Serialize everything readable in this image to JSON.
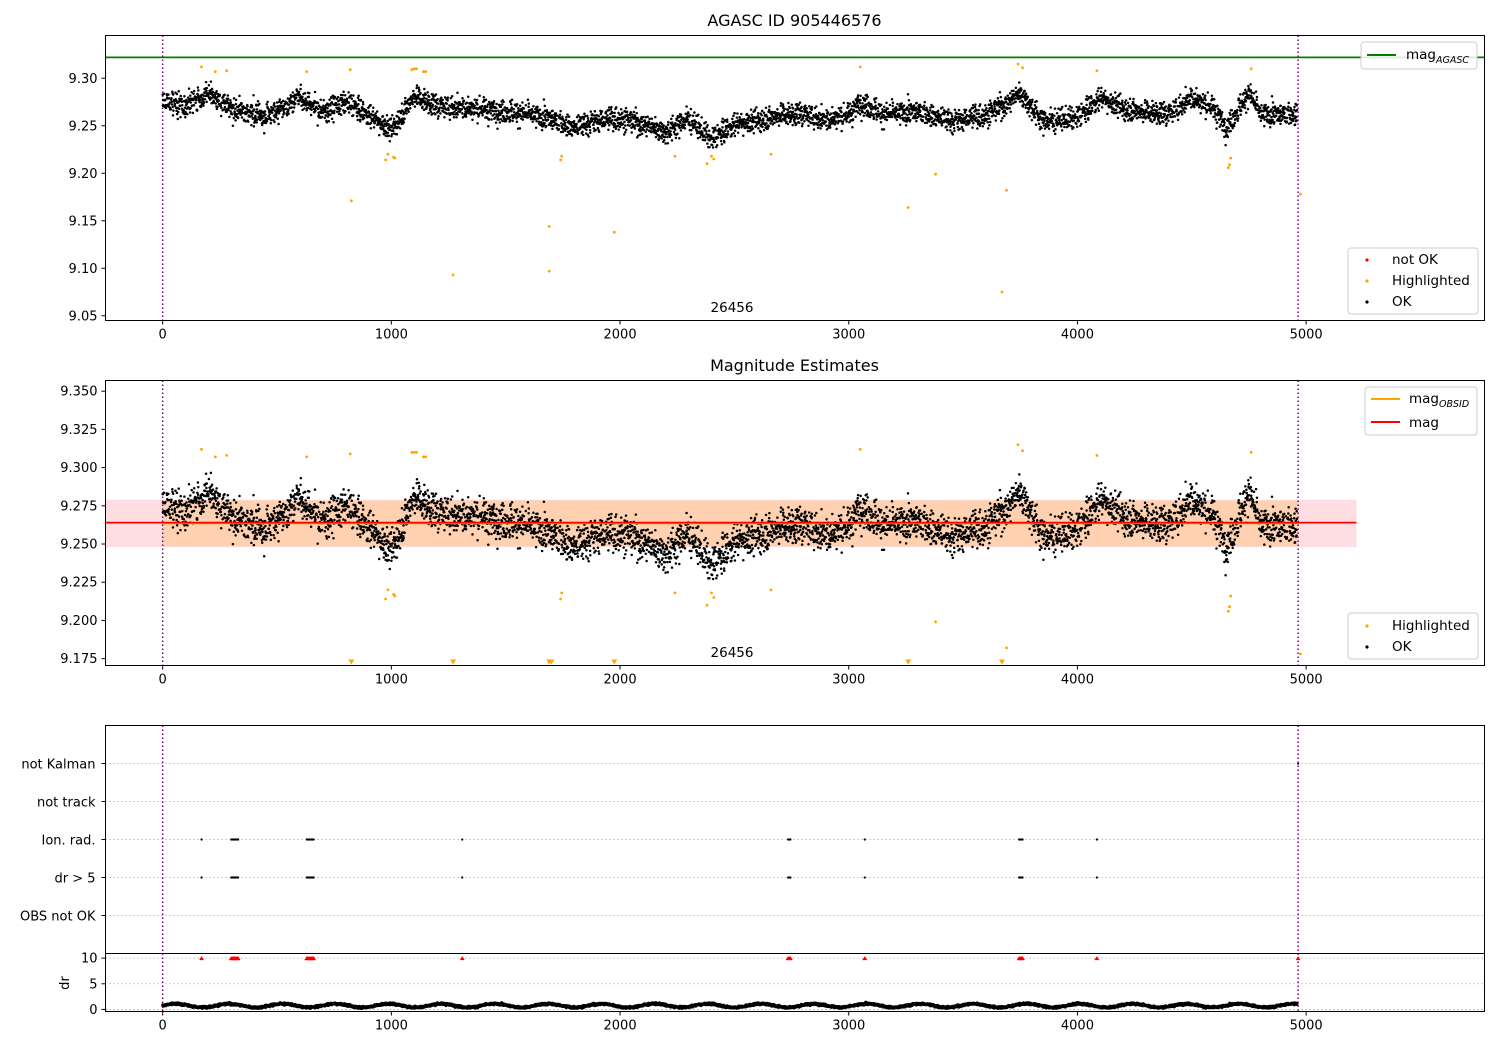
{
  "chart_data": [
    {
      "type": "scatter",
      "title": "AGASC ID 905446576",
      "annotation": "26456",
      "xlim": [
        -250,
        5780
      ],
      "ylim": [
        9.045,
        9.345
      ],
      "xticks": [
        0,
        1000,
        2000,
        3000,
        4000,
        5000
      ],
      "yticks": [
        9.05,
        9.1,
        9.15,
        9.2,
        9.25,
        9.3
      ],
      "ytick_labels": [
        "9.05",
        "9.10",
        "9.15",
        "9.20",
        "9.25",
        "9.30"
      ],
      "grid": false,
      "vlines": [
        0,
        4965
      ],
      "reference_line": {
        "name": "mag_AGASC",
        "value": 9.322,
        "color": "#008000"
      },
      "series": [
        {
          "name": "not OK",
          "color": "#ff0000",
          "points": []
        },
        {
          "name": "Highlighted",
          "color": "#ffa500",
          "points": [
            [
              170,
              9.312
            ],
            [
              230,
              9.307
            ],
            [
              280,
              9.308
            ],
            [
              630,
              9.307
            ],
            [
              820,
              9.309
            ],
            [
              825,
              9.171
            ],
            [
              975,
              9.214
            ],
            [
              985,
              9.22
            ],
            [
              1010,
              9.217
            ],
            [
              1015,
              9.216
            ],
            [
              1090,
              9.309
            ],
            [
              1100,
              9.31
            ],
            [
              1110,
              9.31
            ],
            [
              1140,
              9.307
            ],
            [
              1150,
              9.307
            ],
            [
              1270,
              9.093
            ],
            [
              1690,
              9.144
            ],
            [
              1690,
              9.097
            ],
            [
              1740,
              9.214
            ],
            [
              1745,
              9.218
            ],
            [
              1975,
              9.138
            ],
            [
              2240,
              9.218
            ],
            [
              2380,
              9.21
            ],
            [
              2400,
              9.218
            ],
            [
              2410,
              9.215
            ],
            [
              2660,
              9.22
            ],
            [
              3050,
              9.312
            ],
            [
              3260,
              9.164
            ],
            [
              3380,
              9.199
            ],
            [
              3670,
              9.075
            ],
            [
              3690,
              9.182
            ],
            [
              3740,
              9.315
            ],
            [
              3760,
              9.311
            ],
            [
              4085,
              9.308
            ],
            [
              4660,
              9.206
            ],
            [
              4665,
              9.209
            ],
            [
              4670,
              9.216
            ],
            [
              4760,
              9.31
            ],
            [
              4975,
              9.178
            ]
          ]
        },
        {
          "name": "OK",
          "color": "#000000",
          "points": "about 4,900 points, one per x step from 0 to 4960, mag mostly between 9.225 and 9.305 around a local level of about 9.26"
        }
      ],
      "legend": {
        "placement": "upper right (mag_AGASC) and lower right (not OK, Highlighted, OK)",
        "entries": [
          {
            "label": "mag",
            "subscript": "AGASC",
            "kind": "line",
            "color": "#008000"
          },
          {
            "label": "not OK",
            "kind": "marker",
            "color": "#ff0000"
          },
          {
            "label": "Highlighted",
            "kind": "marker",
            "color": "#ffa500"
          },
          {
            "label": "OK",
            "kind": "marker",
            "color": "#000000"
          }
        ]
      }
    },
    {
      "type": "scatter",
      "title": "Magnitude Estimates",
      "annotation": "26456",
      "xlim": [
        -250,
        5780
      ],
      "ylim": [
        9.1705,
        9.357
      ],
      "xticks": [
        0,
        1000,
        2000,
        3000,
        4000,
        5000
      ],
      "yticks": [
        9.175,
        9.2,
        9.225,
        9.25,
        9.275,
        9.3,
        9.325,
        9.35
      ],
      "ytick_labels": [
        "9.175",
        "9.200",
        "9.225",
        "9.250",
        "9.275",
        "9.300",
        "9.325",
        "9.350"
      ],
      "grid": false,
      "vlines": [
        0,
        4965
      ],
      "mag": {
        "value": 9.264,
        "band": [
          9.248,
          9.279
        ],
        "x_range": [
          -250,
          5220
        ],
        "color": "#ff0000"
      },
      "mag_obsid": {
        "value": 9.2635,
        "band": [
          9.2485,
          9.2785
        ],
        "x_range": [
          0,
          4965
        ],
        "color": "#ffa500"
      },
      "series": [
        {
          "name": "Highlighted",
          "color": "#ffa500",
          "points": [
            [
              170,
              9.312
            ],
            [
              230,
              9.307
            ],
            [
              280,
              9.308
            ],
            [
              630,
              9.307
            ],
            [
              820,
              9.309
            ],
            [
              975,
              9.214
            ],
            [
              985,
              9.22
            ],
            [
              1010,
              9.217
            ],
            [
              1015,
              9.216
            ],
            [
              1090,
              9.31
            ],
            [
              1100,
              9.31
            ],
            [
              1110,
              9.31
            ],
            [
              1140,
              9.307
            ],
            [
              1150,
              9.307
            ],
            [
              1740,
              9.214
            ],
            [
              1745,
              9.218
            ],
            [
              2240,
              9.218
            ],
            [
              2380,
              9.21
            ],
            [
              2400,
              9.218
            ],
            [
              2410,
              9.215
            ],
            [
              2660,
              9.22
            ],
            [
              3050,
              9.312
            ],
            [
              3380,
              9.199
            ],
            [
              3690,
              9.182
            ],
            [
              3740,
              9.315
            ],
            [
              3760,
              9.311
            ],
            [
              4085,
              9.308
            ],
            [
              4660,
              9.206
            ],
            [
              4665,
              9.209
            ],
            [
              4670,
              9.216
            ],
            [
              4760,
              9.31
            ],
            [
              4975,
              9.178
            ]
          ]
        },
        {
          "name": "Highlighted, below axis (triangle markers at bottom edge)",
          "color": "#ffa500",
          "x": [
            825,
            1270,
            1690,
            1700,
            1975,
            3260,
            3670
          ]
        },
        {
          "name": "OK",
          "color": "#000000",
          "points": "same measurements as the upper panel, values between 9.225 and 9.305"
        }
      ],
      "legend": {
        "placement": "upper right (mag_OBSID, mag) and lower right (Highlighted, OK)",
        "entries": [
          {
            "label": "mag",
            "subscript": "OBSID",
            "kind": "line",
            "color": "#ffa500"
          },
          {
            "label": "mag",
            "kind": "line",
            "color": "#ff0000"
          },
          {
            "label": "Highlighted",
            "kind": "marker",
            "color": "#ffa500"
          },
          {
            "label": "OK",
            "kind": "marker",
            "color": "#000000"
          }
        ]
      }
    },
    {
      "type": "scatter",
      "title": "",
      "xlim": [
        -250,
        5780
      ],
      "categories": [
        "not Kalman",
        "not track",
        "Ion. rad.",
        "dr > 5",
        "OBS not OK"
      ],
      "grid": true,
      "vlines": [
        0,
        4965
      ],
      "flags": {
        "not Kalman": [
          4965
        ],
        "not track": [],
        "Ion. rad.": [
          170,
          300,
          305,
          310,
          315,
          320,
          325,
          330,
          630,
          635,
          640,
          645,
          650,
          655,
          660,
          1310,
          2735,
          2740,
          2745,
          3070,
          3745,
          3750,
          3755,
          3760,
          4085
        ],
        "dr > 5": [
          170,
          300,
          305,
          310,
          315,
          320,
          325,
          330,
          630,
          635,
          640,
          645,
          650,
          655,
          660,
          1310,
          2735,
          2740,
          2745,
          3070,
          3745,
          3750,
          3755,
          3760,
          4085
        ],
        "OBS not OK": []
      }
    },
    {
      "type": "scatter",
      "title": "",
      "ylabel": "dr",
      "xlim": [
        -250,
        5780
      ],
      "ylim": [
        -0.4,
        10.9
      ],
      "xticks": [
        0,
        1000,
        2000,
        3000,
        4000,
        5000
      ],
      "yticks": [
        0,
        5,
        10
      ],
      "ytick_labels": [
        "0",
        "5",
        "10"
      ],
      "grid": true,
      "vlines": [
        0,
        4965
      ],
      "series": [
        {
          "name": "dr",
          "color": "#000000",
          "points": "about 4,900 points, one per x step from 0 to 4960, dr between about 0.2 and 1.5"
        },
        {
          "name": "dr > 10 (clipped, triangle markers at the top)",
          "color": "#ff0000",
          "x": [
            170,
            300,
            305,
            310,
            315,
            320,
            325,
            330,
            630,
            635,
            640,
            645,
            650,
            655,
            660,
            1310,
            2735,
            2740,
            2745,
            3070,
            3745,
            3750,
            3755,
            3760,
            4085,
            4965
          ]
        }
      ]
    }
  ]
}
